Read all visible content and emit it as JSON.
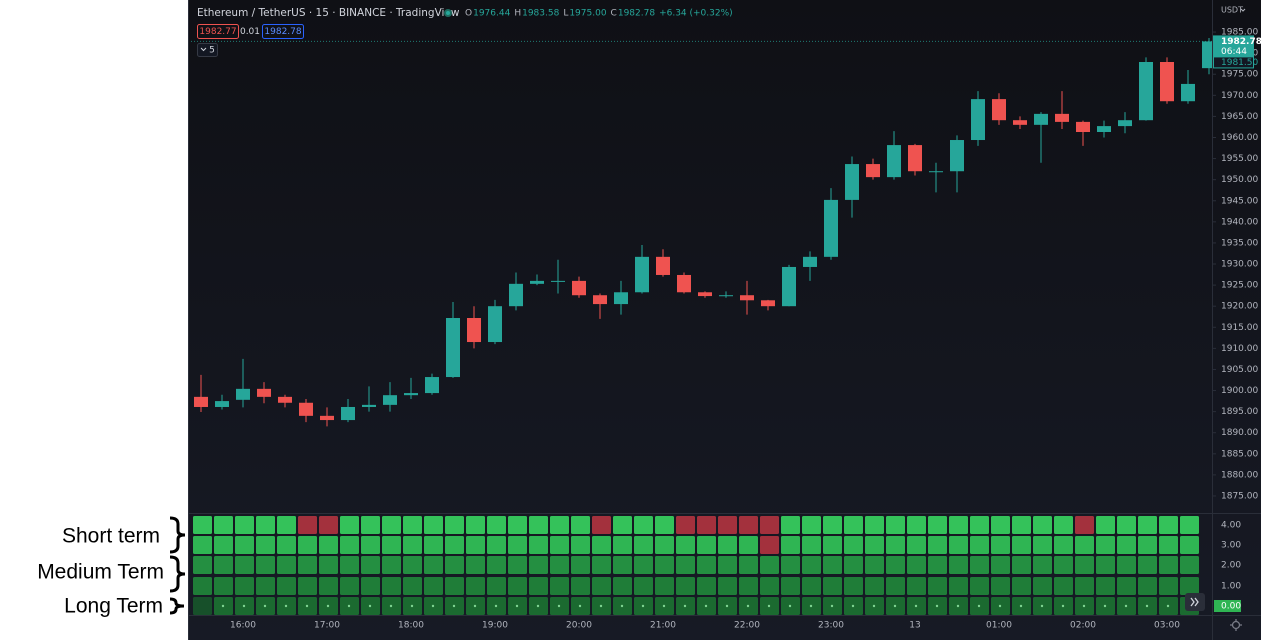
{
  "header": {
    "symbol": "Ethereum / TetherUS · 15 · BINANCE · TradingView",
    "ohlc": [
      {
        "key": "O",
        "value": "1976.44"
      },
      {
        "key": "H",
        "value": "1983.58"
      },
      {
        "key": "L",
        "value": "1975.00"
      },
      {
        "key": "C",
        "value": "1982.78"
      }
    ],
    "change": "+6.34 (+0.32%)",
    "bid": "1982.77",
    "spread": "0.01",
    "ask": "1982.78",
    "indicators_toggle": "5",
    "currency": "USDT"
  },
  "price_scale": {
    "last": "1982.78",
    "countdown": "06:44",
    "marker": "1981.50"
  },
  "chart_data": {
    "type": "candlestick",
    "open": [
      1898.5,
      1896.1,
      1897.8,
      1900.4,
      1898.5,
      1897.1,
      1894,
      1893,
      1896.1,
      1896.6,
      1898.9,
      1899.4,
      1903.2,
      1917.2,
      1911.5,
      1920,
      1925.3,
      1925.8,
      1926,
      1922.6,
      1920.5,
      1923.3,
      1931.7,
      1927.4,
      1923.3,
      1922.4,
      1922.6,
      1921.4,
      1920,
      1929.3,
      1931.7,
      1945.2,
      1953.7,
      1950.6,
      1958.2,
      1951.8,
      1952,
      1959.4,
      1969.1,
      1964.1,
      1963,
      1965.6,
      1963.7,
      1961.3,
      1962.7,
      1964.1,
      1977.9,
      1968.6,
      1976.44
    ],
    "high": [
      1903.7,
      1899,
      1907.5,
      1902,
      1899,
      1898,
      1896,
      1898,
      1901,
      1902,
      1903,
      1904,
      1921,
      1920,
      1921.5,
      1928,
      1927.5,
      1931,
      1927,
      1923,
      1926,
      1934.5,
      1933.5,
      1928,
      1923.5,
      1923.5,
      1926,
      1921.5,
      1929.8,
      1933,
      1948,
      1955.5,
      1955,
      1961.5,
      1958.5,
      1954,
      1960.5,
      1971,
      1970.5,
      1965,
      1966,
      1971,
      1964,
      1964,
      1966,
      1979,
      1979,
      1976,
      1983.58
    ],
    "low": [
      1894.9,
      1895.5,
      1896,
      1897,
      1896,
      1892.5,
      1891.5,
      1892.5,
      1895,
      1895,
      1898,
      1899,
      1903,
      1910,
      1911,
      1919,
      1925,
      1923,
      1922,
      1917,
      1918,
      1923,
      1927,
      1923,
      1922,
      1922,
      1918,
      1919,
      1920,
      1926,
      1931,
      1941,
      1950,
      1950,
      1951,
      1947,
      1947,
      1958,
      1963,
      1962,
      1954,
      1962,
      1958,
      1960,
      1961,
      1964,
      1968,
      1968,
      1975
    ],
    "close": [
      1896.1,
      1897.5,
      1900.4,
      1898.5,
      1897.1,
      1894,
      1893,
      1896.1,
      1896.6,
      1898.9,
      1899.4,
      1903.2,
      1917.2,
      1911.5,
      1920,
      1925.3,
      1926,
      1926,
      1922.6,
      1920.5,
      1923.3,
      1931.7,
      1927.4,
      1923.3,
      1922.4,
      1922.6,
      1921.4,
      1920,
      1929.3,
      1931.7,
      1945.2,
      1953.7,
      1950.6,
      1958.2,
      1952,
      1952,
      1959.4,
      1969.1,
      1964.1,
      1963,
      1965.6,
      1963.7,
      1961.3,
      1962.7,
      1964.1,
      1977.9,
      1968.6,
      1972.7,
      1982.78
    ],
    "up_color": "#26a69a",
    "down_color": "#ef5350",
    "ylim": [
      1871.2,
      1992.6
    ],
    "yticks": [
      {
        "value": 1985,
        "label": "1985.00"
      },
      {
        "value": 1980,
        "label": "1980.00"
      },
      {
        "value": 1975,
        "label": "1975.00"
      },
      {
        "value": 1970,
        "label": "1970.00"
      },
      {
        "value": 1965,
        "label": "1965.00"
      },
      {
        "value": 1960,
        "label": "1960.00"
      },
      {
        "value": 1955,
        "label": "1955.00"
      },
      {
        "value": 1950,
        "label": "1950.00"
      },
      {
        "value": 1945,
        "label": "1945.00"
      },
      {
        "value": 1940,
        "label": "1940.00"
      },
      {
        "value": 1935,
        "label": "1935.00"
      },
      {
        "value": 1930,
        "label": "1930.00"
      },
      {
        "value": 1925,
        "label": "1925.00"
      },
      {
        "value": 1920,
        "label": "1920.00"
      },
      {
        "value": 1915,
        "label": "1915.00"
      },
      {
        "value": 1910,
        "label": "1910.00"
      },
      {
        "value": 1905,
        "label": "1905.00"
      },
      {
        "value": 1900,
        "label": "1900.00"
      },
      {
        "value": 1895,
        "label": "1895.00"
      },
      {
        "value": 1890,
        "label": "1890.00"
      },
      {
        "value": 1885,
        "label": "1885.00"
      },
      {
        "value": 1880,
        "label": "1880.00"
      },
      {
        "value": 1875,
        "label": "1875.00"
      }
    ],
    "xticks": [
      "16:00",
      "17:00",
      "18:00",
      "19:00",
      "20:00",
      "21:00",
      "22:00",
      "23:00",
      "13",
      "01:00",
      "02:00",
      "03:00"
    ],
    "grid": false
  },
  "indicator": {
    "rows": [
      {
        "label": "4.00",
        "colors": [
          "#34c25a",
          "#34c25a",
          "#34c25a",
          "#34c25a",
          "#34c25a",
          "#a3313d",
          "#a3313d",
          "#34c25a",
          "#34c25a",
          "#34c25a",
          "#34c25a",
          "#34c25a",
          "#34c25a",
          "#34c25a",
          "#34c25a",
          "#34c25a",
          "#34c25a",
          "#34c25a",
          "#34c25a",
          "#a3313d",
          "#34c25a",
          "#34c25a",
          "#34c25a",
          "#a3313d",
          "#a3313d",
          "#a3313d",
          "#a3313d",
          "#a3313d",
          "#34c25a",
          "#34c25a",
          "#34c25a",
          "#34c25a",
          "#34c25a",
          "#34c25a",
          "#34c25a",
          "#34c25a",
          "#34c25a",
          "#34c25a",
          "#34c25a",
          "#34c25a",
          "#34c25a",
          "#34c25a",
          "#a3313d",
          "#34c25a",
          "#34c25a",
          "#34c25a",
          "#34c25a",
          "#34c25a"
        ]
      },
      {
        "label": "3.00",
        "colors": [
          "#2fb553",
          "#2fb553",
          "#2fb553",
          "#2fb553",
          "#2fb553",
          "#2fb553",
          "#2fb553",
          "#2fb553",
          "#2fb553",
          "#2fb553",
          "#2fb553",
          "#2fb553",
          "#2fb553",
          "#2fb553",
          "#2fb553",
          "#2fb553",
          "#2fb553",
          "#2fb553",
          "#2fb553",
          "#2fb553",
          "#2fb553",
          "#2fb553",
          "#2fb553",
          "#2fb553",
          "#2fb553",
          "#2fb553",
          "#2fb553",
          "#a3313d",
          "#2fb553",
          "#2fb553",
          "#2fb553",
          "#2fb553",
          "#2fb553",
          "#2fb553",
          "#2fb553",
          "#2fb553",
          "#2fb553",
          "#2fb553",
          "#2fb553",
          "#2fb553",
          "#2fb553",
          "#2fb553",
          "#2fb553",
          "#2fb553",
          "#2fb553",
          "#2fb553",
          "#2fb553",
          "#2fb553"
        ]
      },
      {
        "label": "2.00",
        "colors": [
          "#248f41",
          "#248f41",
          "#248f41",
          "#248f41",
          "#248f41",
          "#248f41",
          "#248f41",
          "#248f41",
          "#248f41",
          "#248f41",
          "#248f41",
          "#248f41",
          "#248f41",
          "#248f41",
          "#248f41",
          "#248f41",
          "#248f41",
          "#248f41",
          "#248f41",
          "#248f41",
          "#248f41",
          "#248f41",
          "#248f41",
          "#248f41",
          "#248f41",
          "#248f41",
          "#248f41",
          "#248f41",
          "#248f41",
          "#248f41",
          "#248f41",
          "#248f41",
          "#248f41",
          "#248f41",
          "#248f41",
          "#248f41",
          "#248f41",
          "#248f41",
          "#248f41",
          "#248f41",
          "#248f41",
          "#248f41",
          "#248f41",
          "#248f41",
          "#248f41",
          "#248f41",
          "#248f41",
          "#248f41"
        ]
      },
      {
        "label": "1.00",
        "colors": [
          "#1f7d38",
          "#1f7d38",
          "#1f7d38",
          "#1f7d38",
          "#1f7d38",
          "#1f7d38",
          "#1f7d38",
          "#1f7d38",
          "#1f7d38",
          "#1f7d38",
          "#1f7d38",
          "#1f7d38",
          "#1f7d38",
          "#1f7d38",
          "#1f7d38",
          "#1f7d38",
          "#1f7d38",
          "#1f7d38",
          "#1f7d38",
          "#1f7d38",
          "#1f7d38",
          "#1f7d38",
          "#1f7d38",
          "#1f7d38",
          "#1f7d38",
          "#1f7d38",
          "#1f7d38",
          "#1f7d38",
          "#1f7d38",
          "#1f7d38",
          "#1f7d38",
          "#1f7d38",
          "#1f7d38",
          "#1f7d38",
          "#1f7d38",
          "#1f7d38",
          "#1f7d38",
          "#1f7d38",
          "#1f7d38",
          "#1f7d38",
          "#1f7d38",
          "#1f7d38",
          "#1f7d38",
          "#1f7d38",
          "#1f7d38",
          "#1f7d38",
          "#1f7d38",
          "#1f7d38"
        ]
      },
      {
        "label": "0.00",
        "colors": [
          "#17502a",
          "#1b6a30",
          "#1b6a30",
          "#1b6a30",
          "#1b6a30",
          "#1b6a30",
          "#1b6a30",
          "#1b6a30",
          "#1b6a30",
          "#1b6a30",
          "#1b6a30",
          "#1b6a30",
          "#1b6a30",
          "#1b6a30",
          "#1b6a30",
          "#1b6a30",
          "#1b6a30",
          "#1b6a30",
          "#1b6a30",
          "#1b6a30",
          "#1b6a30",
          "#1b6a30",
          "#1b6a30",
          "#1b6a30",
          "#1b6a30",
          "#1b6a30",
          "#1b6a30",
          "#1b6a30",
          "#1b6a30",
          "#1b6a30",
          "#1b6a30",
          "#1b6a30",
          "#1b6a30",
          "#1b6a30",
          "#1b6a30",
          "#1b6a30",
          "#1b6a30",
          "#1b6a30",
          "#1b6a30",
          "#1b6a30",
          "#1b6a30",
          "#1b6a30",
          "#1b6a30",
          "#1b6a30",
          "#1b6a30",
          "#1b6a30",
          "#1b6a30",
          "#1b6a30"
        ]
      }
    ]
  },
  "annotations": [
    "Short term",
    "Medium Term",
    "Long Term"
  ]
}
